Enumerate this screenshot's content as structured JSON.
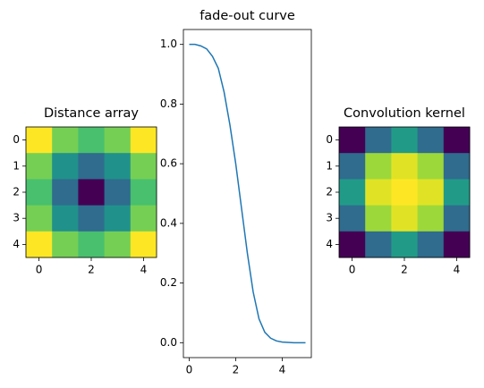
{
  "chart_data": [
    {
      "type": "heatmap",
      "title": "Distance array",
      "colormap": "viridis",
      "values": [
        [
          2.83,
          2.24,
          2,
          2.24,
          2.83
        ],
        [
          2.24,
          1.41,
          1,
          1.41,
          2.24
        ],
        [
          2,
          1,
          0,
          1,
          2
        ],
        [
          2.24,
          1.41,
          1,
          1.41,
          2.24
        ],
        [
          2.83,
          2.24,
          2,
          2.24,
          2.83
        ]
      ],
      "xlim": [
        -0.5,
        4.5
      ],
      "ylim": [
        4.5,
        -0.5
      ],
      "xticks": [
        0,
        2,
        4
      ],
      "yticks": [
        0,
        1,
        2,
        3,
        4
      ]
    },
    {
      "type": "line",
      "title": "fade-out curve",
      "color": "#1f77b4",
      "x": [
        0,
        0.25,
        0.5,
        0.75,
        1,
        1.25,
        1.5,
        1.75,
        2,
        2.25,
        2.5,
        2.75,
        3,
        3.25,
        3.5,
        3.75,
        4,
        4.5,
        5
      ],
      "values": [
        1,
        1,
        0.995,
        0.985,
        0.96,
        0.92,
        0.84,
        0.73,
        0.6,
        0.45,
        0.3,
        0.17,
        0.08,
        0.035,
        0.015,
        0.006,
        0.002,
        0,
        0
      ],
      "xlim": [
        -0.25,
        5.25
      ],
      "ylim": [
        -0.05,
        1.05
      ],
      "xticks": [
        0,
        2,
        4
      ],
      "yticks": [
        {
          "value": 0,
          "label": "0.0"
        },
        0.2,
        0.4,
        0.6,
        0.8,
        {
          "value": 1,
          "label": "1.0"
        }
      ]
    },
    {
      "type": "heatmap",
      "title": "Convolution kernel",
      "colormap": "viridis",
      "values": [
        [
          0.12,
          0.43,
          0.6,
          0.43,
          0.12
        ],
        [
          0.43,
          0.87,
          0.96,
          0.87,
          0.43
        ],
        [
          0.6,
          0.96,
          1,
          0.96,
          0.6
        ],
        [
          0.43,
          0.87,
          0.96,
          0.87,
          0.43
        ],
        [
          0.12,
          0.43,
          0.6,
          0.43,
          0.12
        ]
      ],
      "xlim": [
        -0.5,
        4.5
      ],
      "ylim": [
        4.5,
        -0.5
      ],
      "xticks": [
        0,
        2,
        4
      ],
      "yticks": [
        0,
        1,
        2,
        3,
        4
      ]
    }
  ]
}
